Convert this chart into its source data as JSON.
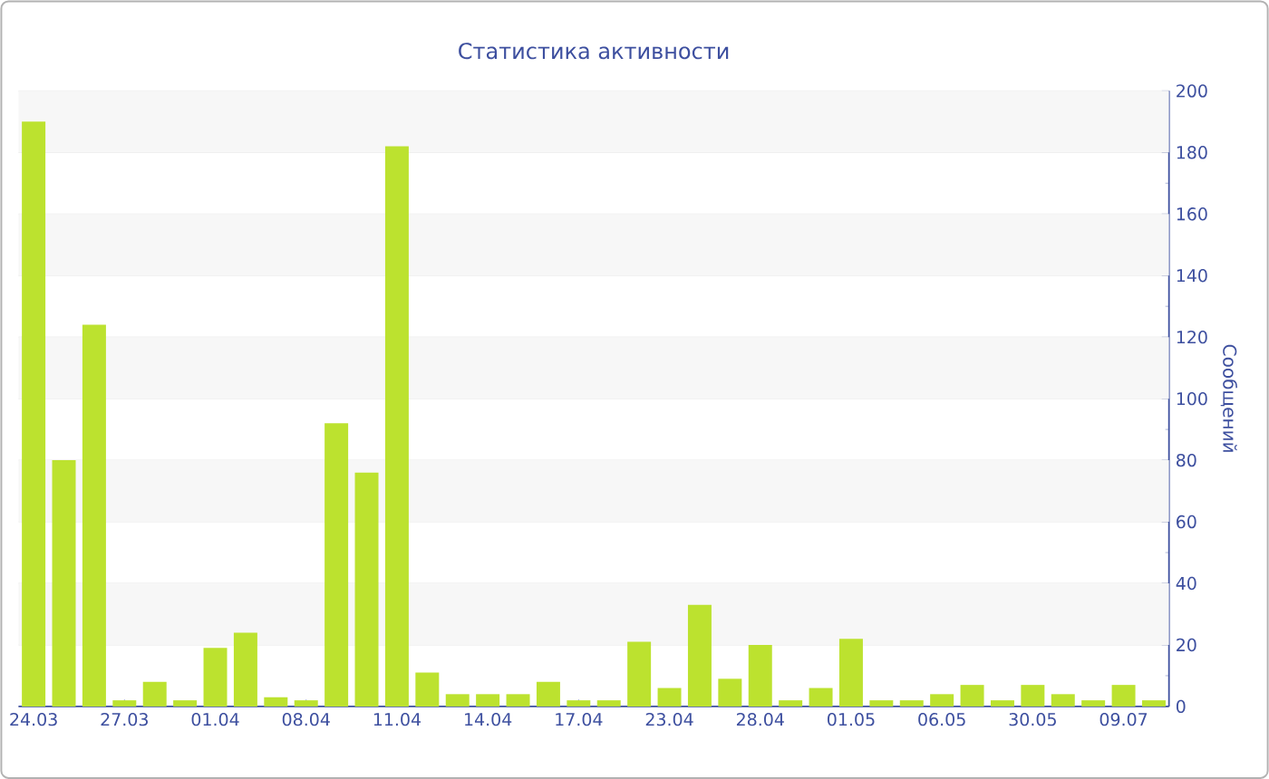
{
  "chart_data": {
    "type": "bar",
    "title": "Статистика активности",
    "ylabel": "Сообщений",
    "categories": [
      "24.03",
      null,
      null,
      "27.03",
      null,
      null,
      "01.04",
      null,
      null,
      "08.04",
      null,
      null,
      "11.04",
      null,
      null,
      "14.04",
      null,
      null,
      "17.04",
      null,
      null,
      "23.04",
      null,
      null,
      "28.04",
      null,
      null,
      "01.05",
      null,
      null,
      "06.05",
      null,
      null,
      "30.05",
      null,
      null,
      "09.07",
      null
    ],
    "values": [
      190,
      80,
      124,
      2,
      8,
      2,
      19,
      24,
      3,
      2,
      92,
      76,
      182,
      11,
      4,
      4,
      4,
      8,
      2,
      2,
      21,
      6,
      33,
      9,
      20,
      2,
      6,
      22,
      2,
      2,
      4,
      7,
      2,
      7,
      4,
      2,
      7,
      2
    ],
    "color": "#bce22f",
    "ylim": [
      0,
      200
    ],
    "yticks": [
      0,
      20,
      40,
      60,
      80,
      100,
      120,
      140,
      160,
      180,
      200
    ],
    "grid": "y"
  }
}
